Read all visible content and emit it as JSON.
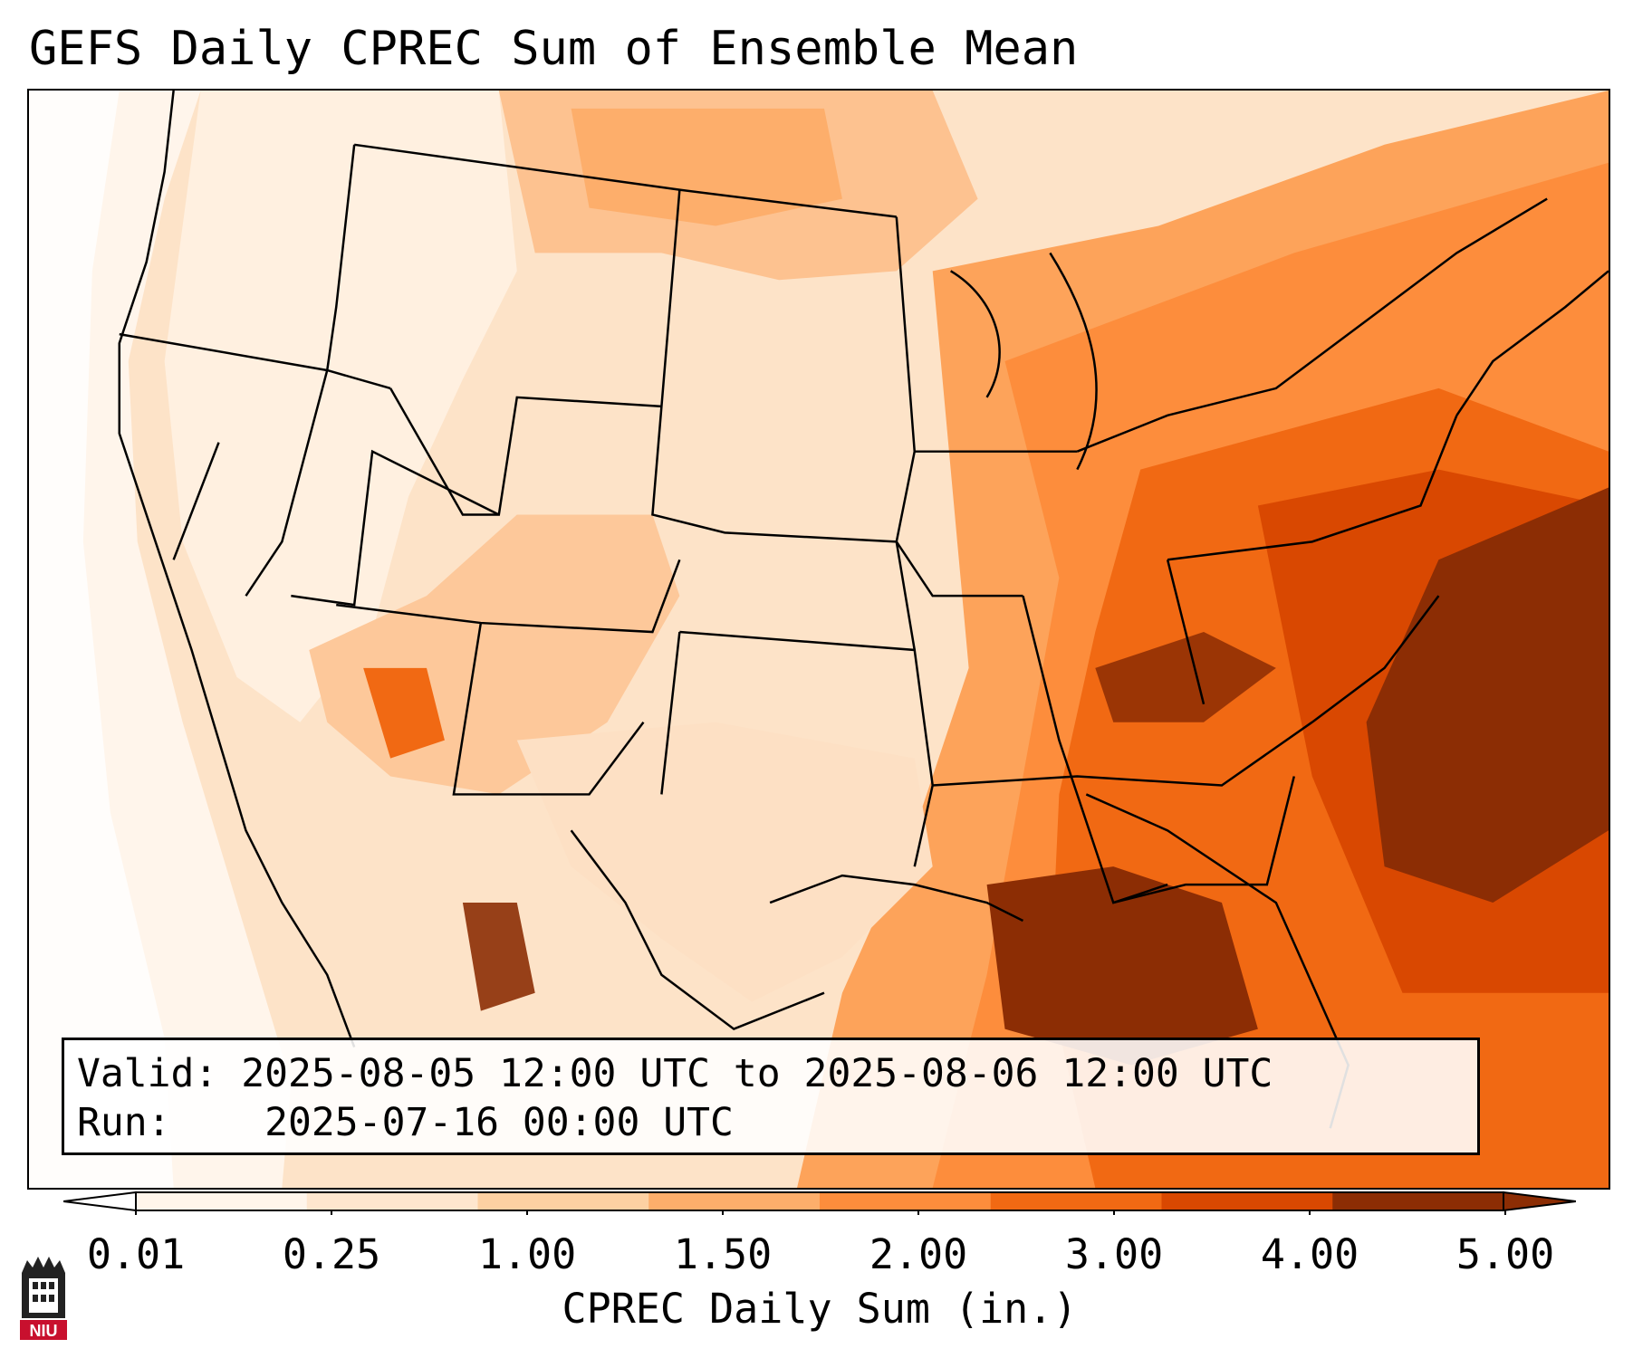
{
  "title": "GEFS Daily CPREC Sum of Ensemble Mean",
  "info": {
    "valid_label": "Valid:",
    "valid_value": "2025-08-05 12:00 UTC to 2025-08-06 12:00 UTC",
    "run_label": "Run:",
    "run_value": "2025-07-16 00:00 UTC"
  },
  "colorbar": {
    "label": "CPREC Daily Sum (in.)",
    "ticks": [
      "0.01",
      "0.25",
      "1.00",
      "1.50",
      "2.00",
      "3.00",
      "4.00",
      "5.00"
    ],
    "colors": [
      "#fff5eb",
      "#fee6ce",
      "#fdd0a2",
      "#fdae6b",
      "#fd8d3c",
      "#f16913",
      "#d94801",
      "#8c2d04"
    ],
    "under_color": "#ffffff",
    "over_color": "#8c2d04"
  },
  "map": {
    "projection": "Lambert Conformal",
    "region": "Contiguous United States",
    "ocean_land_color": "#fde7d3",
    "heavy_precip_color": "#8c2d04"
  },
  "logo": {
    "text": "NIU",
    "color": "#c8102e"
  }
}
